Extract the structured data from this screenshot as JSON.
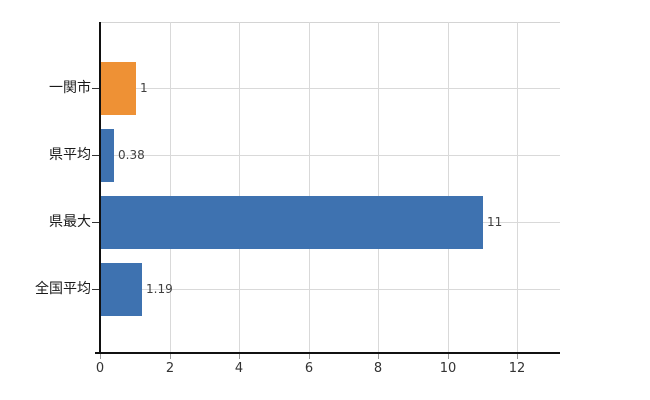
{
  "chart_data": {
    "type": "bar",
    "orientation": "horizontal",
    "title": "",
    "xlabel": "",
    "ylabel": "",
    "categories": [
      "一関市",
      "県平均",
      "県最大",
      "全国平均"
    ],
    "values": [
      1,
      0.38,
      11,
      1.19
    ],
    "value_labels": [
      "1",
      "0.38",
      "11",
      "1.19"
    ],
    "bar_colors": [
      "#ee9135",
      "#3e72b0",
      "#3e72b0",
      "#3e72b0"
    ],
    "xticks": [
      0,
      2,
      4,
      6,
      8,
      10,
      12
    ],
    "xlim": [
      0,
      13.2
    ],
    "grid": true,
    "legend": false
  },
  "colors": {
    "highlight_bar": "#ee9135",
    "default_bar": "#3e72b0",
    "gridline": "#d9d9d9",
    "axis": "#111111",
    "category_text": "#1a1a1a",
    "value_text": "#404040",
    "tick_text": "#333333"
  }
}
